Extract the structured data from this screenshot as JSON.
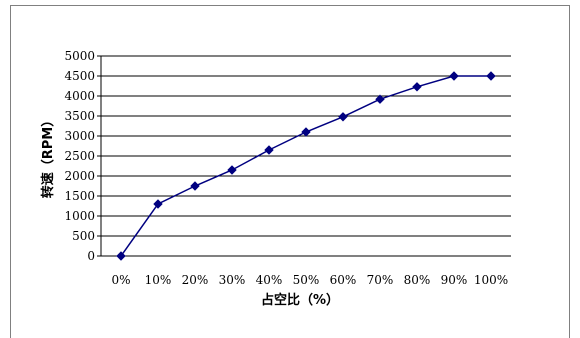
{
  "chart_data": {
    "type": "line",
    "title": "",
    "xlabel": "占空比（%）",
    "ylabel": "转速（RPM）",
    "categories": [
      "0%",
      "10%",
      "20%",
      "30%",
      "40%",
      "50%",
      "60%",
      "70%",
      "80%",
      "90%",
      "100%"
    ],
    "series": [
      {
        "values": [
          0,
          1300,
          1750,
          2150,
          2650,
          3100,
          3480,
          3920,
          4230,
          4500,
          4500
        ]
      }
    ],
    "ylim": [
      0,
      5000
    ],
    "yticks": [
      "0",
      "500",
      "1000",
      "1500",
      "2000",
      "2500",
      "3000",
      "3500",
      "4000",
      "4500",
      "5000"
    ],
    "grid": true,
    "legend": "none",
    "colors": {
      "line": "#000080",
      "marker": "#000080",
      "grid": "#000000"
    }
  }
}
